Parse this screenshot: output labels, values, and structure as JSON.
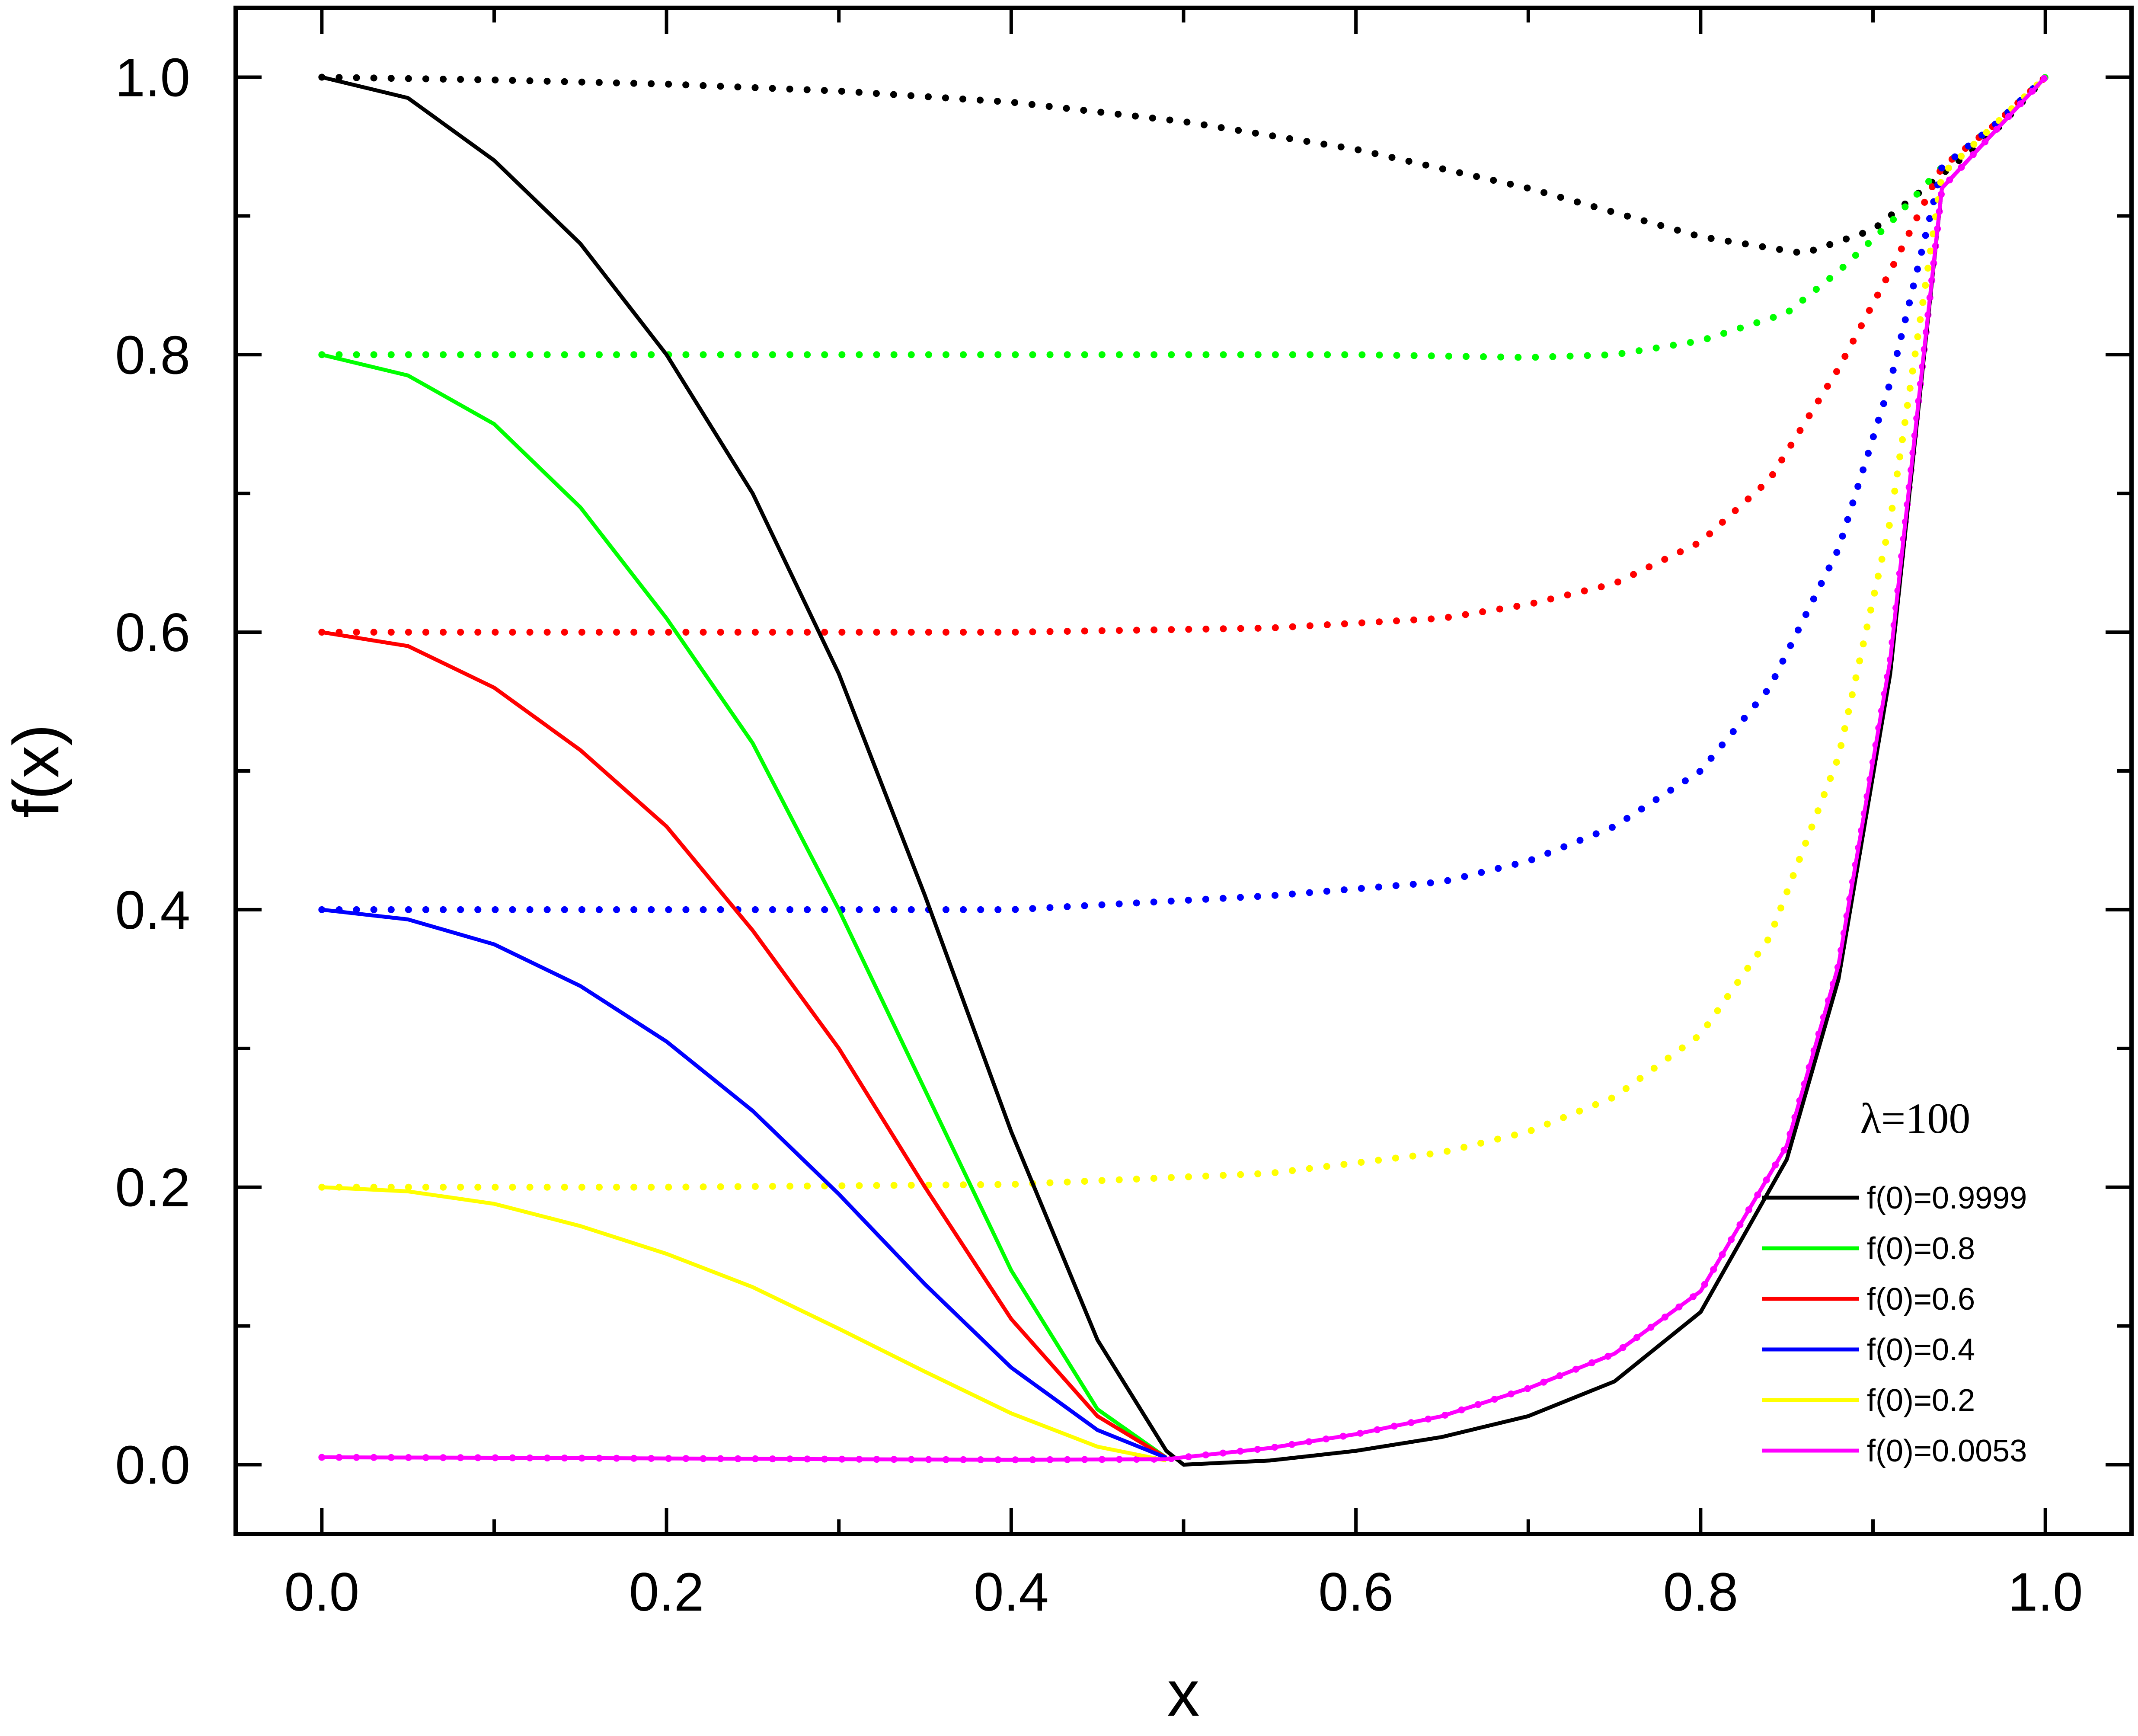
{
  "chart_data": {
    "type": "line",
    "xlabel": "x",
    "ylabel": "f(x)",
    "xlim": [
      -0.05,
      1.05
    ],
    "ylim": [
      -0.05,
      1.05
    ],
    "xticks": [
      "0.0",
      "0.2",
      "0.4",
      "0.6",
      "0.8",
      "1.0"
    ],
    "yticks": [
      "0.0",
      "0.2",
      "0.4",
      "0.6",
      "0.8",
      "1.0"
    ],
    "grid": false,
    "legend_position": "bottom-right",
    "annotation": "λ=100",
    "series": [
      {
        "name": "f(0)=0.9999",
        "color": "#000000",
        "style": "solid",
        "x": [
          0,
          0.05,
          0.1,
          0.15,
          0.2,
          0.25,
          0.3,
          0.35,
          0.4,
          0.45,
          0.49,
          0.5,
          0.55,
          0.6,
          0.65,
          0.7,
          0.75,
          0.8,
          0.85,
          0.88,
          0.91,
          0.94,
          0.97,
          1.0
        ],
        "y": [
          1.0,
          0.985,
          0.94,
          0.88,
          0.8,
          0.7,
          0.57,
          0.41,
          0.24,
          0.09,
          0.01,
          0.0,
          0.003,
          0.01,
          0.02,
          0.035,
          0.06,
          0.11,
          0.22,
          0.35,
          0.57,
          0.92,
          0.96,
          1.0
        ]
      },
      {
        "name": "f(0)=0.8",
        "color": "#00ff00",
        "style": "solid",
        "x": [
          0,
          0.05,
          0.1,
          0.15,
          0.2,
          0.25,
          0.3,
          0.35,
          0.4,
          0.45,
          0.49
        ],
        "y": [
          0.8,
          0.785,
          0.75,
          0.69,
          0.61,
          0.52,
          0.4,
          0.27,
          0.14,
          0.04,
          0.005
        ]
      },
      {
        "name": "f(0)=0.6",
        "color": "#ff0000",
        "style": "solid",
        "x": [
          0,
          0.05,
          0.1,
          0.15,
          0.2,
          0.25,
          0.3,
          0.35,
          0.4,
          0.45,
          0.49
        ],
        "y": [
          0.6,
          0.59,
          0.56,
          0.515,
          0.46,
          0.385,
          0.3,
          0.2,
          0.105,
          0.035,
          0.005
        ]
      },
      {
        "name": "f(0)=0.4",
        "color": "#0000ff",
        "style": "solid",
        "x": [
          0,
          0.05,
          0.1,
          0.15,
          0.2,
          0.25,
          0.3,
          0.35,
          0.4,
          0.45,
          0.49
        ],
        "y": [
          0.4,
          0.393,
          0.375,
          0.345,
          0.305,
          0.255,
          0.195,
          0.13,
          0.07,
          0.025,
          0.005
        ]
      },
      {
        "name": "f(0)=0.2",
        "color": "#ffff00",
        "style": "solid",
        "x": [
          0,
          0.05,
          0.1,
          0.15,
          0.2,
          0.25,
          0.3,
          0.35,
          0.4,
          0.45,
          0.49
        ],
        "y": [
          0.2,
          0.197,
          0.188,
          0.172,
          0.152,
          0.128,
          0.098,
          0.067,
          0.037,
          0.013,
          0.003
        ]
      },
      {
        "name": "f(0)=0.0053",
        "color": "#ff00ff",
        "style": "solid",
        "x": [
          0,
          0.1,
          0.2,
          0.3,
          0.4,
          0.49,
          0.55,
          0.6,
          0.65,
          0.7,
          0.75,
          0.8,
          0.85,
          0.88,
          0.91,
          0.94,
          0.97,
          1.0
        ],
        "y": [
          0.0053,
          0.005,
          0.0045,
          0.004,
          0.0035,
          0.004,
          0.012,
          0.022,
          0.035,
          0.055,
          0.08,
          0.125,
          0.23,
          0.36,
          0.58,
          0.92,
          0.96,
          1.0
        ]
      },
      {
        "color": "#000000",
        "style": "dotted",
        "x": [
          0,
          0.1,
          0.2,
          0.3,
          0.4,
          0.5,
          0.6,
          0.7,
          0.8,
          0.86,
          0.9,
          0.94,
          0.97,
          1.0
        ],
        "y": [
          1.0,
          0.998,
          0.995,
          0.99,
          0.982,
          0.968,
          0.948,
          0.92,
          0.885,
          0.873,
          0.89,
          0.93,
          0.96,
          1.0
        ]
      },
      {
        "color": "#00ff00",
        "style": "dotted",
        "x": [
          0,
          0.2,
          0.4,
          0.6,
          0.7,
          0.75,
          0.8,
          0.85,
          0.88,
          0.91,
          0.94,
          0.97,
          1.0
        ],
        "y": [
          0.8,
          0.8,
          0.8,
          0.8,
          0.798,
          0.8,
          0.81,
          0.83,
          0.86,
          0.895,
          0.935,
          0.965,
          1.0
        ]
      },
      {
        "color": "#ff0000",
        "style": "dotted",
        "x": [
          0,
          0.2,
          0.4,
          0.55,
          0.65,
          0.7,
          0.75,
          0.8,
          0.84,
          0.88,
          0.91,
          0.94,
          0.97,
          1.0
        ],
        "y": [
          0.6,
          0.6,
          0.6,
          0.603,
          0.61,
          0.62,
          0.635,
          0.665,
          0.71,
          0.79,
          0.86,
          0.935,
          0.965,
          1.0
        ]
      },
      {
        "color": "#0000ff",
        "style": "dotted",
        "x": [
          0,
          0.2,
          0.4,
          0.55,
          0.65,
          0.7,
          0.75,
          0.8,
          0.84,
          0.88,
          0.91,
          0.94,
          0.97,
          1.0
        ],
        "y": [
          0.4,
          0.4,
          0.4,
          0.41,
          0.42,
          0.435,
          0.46,
          0.5,
          0.56,
          0.66,
          0.78,
          0.935,
          0.965,
          1.0
        ]
      },
      {
        "color": "#ffff00",
        "style": "dotted",
        "x": [
          0,
          0.2,
          0.4,
          0.55,
          0.65,
          0.7,
          0.75,
          0.8,
          0.84,
          0.88,
          0.91,
          0.94,
          0.97,
          1.0
        ],
        "y": [
          0.2,
          0.2,
          0.202,
          0.21,
          0.225,
          0.24,
          0.265,
          0.31,
          0.38,
          0.51,
          0.68,
          0.93,
          0.965,
          1.0
        ]
      },
      {
        "color": "#ff00ff",
        "style": "dotted",
        "x": [
          0,
          0.1,
          0.2,
          0.3,
          0.4,
          0.49,
          0.55,
          0.6,
          0.65,
          0.7,
          0.75,
          0.8,
          0.85,
          0.88,
          0.91,
          0.94,
          0.97,
          1.0
        ],
        "y": [
          0.0053,
          0.005,
          0.0045,
          0.004,
          0.0035,
          0.004,
          0.012,
          0.022,
          0.035,
          0.055,
          0.08,
          0.125,
          0.23,
          0.36,
          0.58,
          0.92,
          0.96,
          1.0
        ]
      }
    ]
  }
}
